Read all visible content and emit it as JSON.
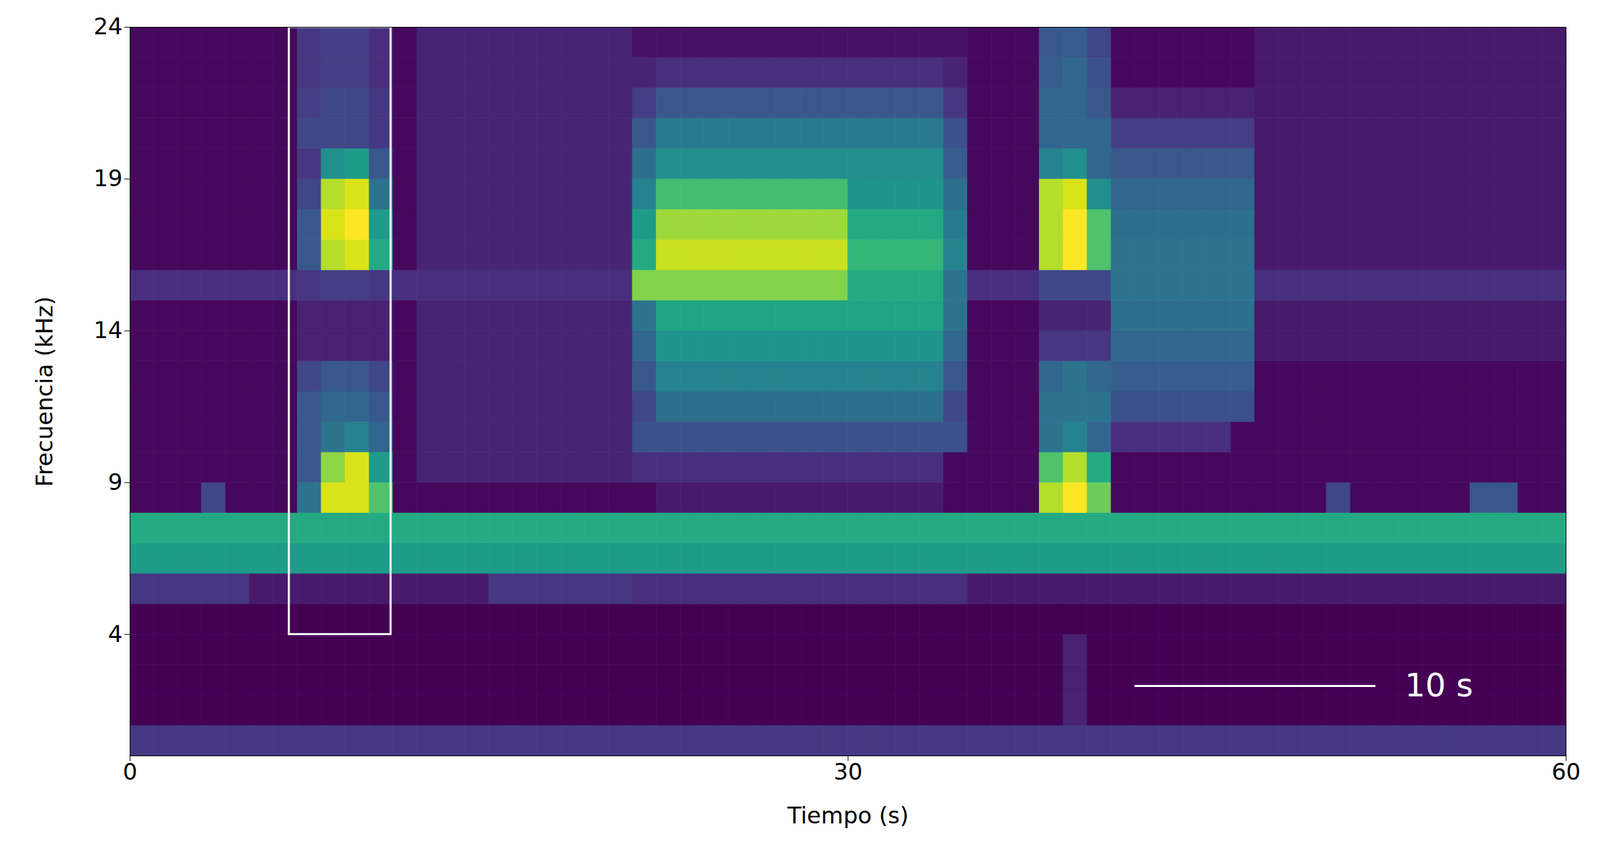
{
  "chart_data": {
    "type": "heatmap",
    "x_label": "Tiempo (s)",
    "y_label": "Frecuencia (kHz)",
    "xlim": [
      0,
      60
    ],
    "ylim": [
      0,
      24
    ],
    "xticks": [
      0,
      30,
      60
    ],
    "yticks": [
      4,
      9,
      14,
      19,
      24
    ],
    "x_bins": [
      0,
      1,
      2,
      3,
      4,
      5,
      6,
      7,
      8,
      9,
      10,
      11,
      12,
      13,
      14,
      15,
      16,
      17,
      18,
      19,
      20,
      21,
      22,
      23,
      24,
      25,
      26,
      27,
      28,
      29,
      30,
      31,
      32,
      33,
      34,
      35,
      36,
      37,
      38,
      39,
      40,
      41,
      42,
      43,
      44,
      45,
      46,
      47,
      48,
      49,
      50,
      51,
      52,
      53,
      54,
      55,
      56,
      57,
      58,
      59,
      60
    ],
    "y_bins": [
      0,
      1,
      2,
      3,
      4,
      5,
      6,
      7,
      8,
      9,
      10,
      11,
      12,
      13,
      14,
      15,
      16,
      17,
      18,
      19,
      20,
      21,
      22,
      23,
      24
    ],
    "z": [
      [
        20,
        20,
        20,
        20,
        20,
        20,
        20,
        20,
        20,
        20,
        20,
        20,
        20,
        20,
        20,
        20,
        20,
        20,
        20,
        20,
        20,
        20,
        20,
        20,
        20,
        20,
        20,
        20,
        20,
        20,
        20,
        20,
        20,
        20,
        20,
        20,
        20,
        20,
        20,
        20,
        20,
        20,
        20,
        20,
        20,
        20,
        20,
        20,
        20,
        20,
        20,
        20,
        20,
        20,
        20,
        20,
        20,
        20,
        20,
        20
      ],
      [
        6,
        6,
        6,
        6,
        6,
        6,
        6,
        6,
        6,
        6,
        6,
        6,
        6,
        6,
        6,
        6,
        6,
        6,
        6,
        6,
        6,
        6,
        6,
        6,
        6,
        6,
        6,
        6,
        6,
        6,
        6,
        6,
        6,
        6,
        6,
        6,
        6,
        6,
        6,
        14,
        6,
        6,
        6,
        6,
        6,
        6,
        6,
        6,
        6,
        6,
        6,
        6,
        6,
        6,
        6,
        6,
        6,
        6,
        6,
        6
      ],
      [
        6,
        6,
        6,
        6,
        6,
        6,
        6,
        6,
        6,
        6,
        6,
        6,
        6,
        6,
        6,
        6,
        6,
        6,
        6,
        6,
        6,
        6,
        6,
        6,
        6,
        6,
        6,
        6,
        6,
        6,
        6,
        6,
        6,
        6,
        6,
        6,
        6,
        6,
        6,
        14,
        6,
        6,
        6,
        6,
        6,
        6,
        6,
        6,
        6,
        6,
        6,
        6,
        6,
        6,
        6,
        6,
        6,
        6,
        6,
        6
      ],
      [
        6,
        6,
        6,
        6,
        6,
        6,
        6,
        6,
        6,
        6,
        6,
        6,
        6,
        6,
        6,
        6,
        6,
        6,
        6,
        6,
        6,
        6,
        6,
        6,
        6,
        6,
        6,
        6,
        6,
        6,
        6,
        6,
        6,
        6,
        6,
        6,
        6,
        6,
        6,
        14,
        6,
        6,
        6,
        6,
        6,
        6,
        6,
        6,
        6,
        6,
        6,
        6,
        6,
        6,
        6,
        6,
        6,
        6,
        6,
        6
      ],
      [
        6,
        6,
        6,
        6,
        6,
        6,
        6,
        6,
        6,
        6,
        6,
        6,
        6,
        6,
        6,
        6,
        6,
        6,
        6,
        6,
        6,
        6,
        6,
        6,
        6,
        6,
        6,
        6,
        6,
        6,
        6,
        6,
        6,
        6,
        6,
        6,
        6,
        6,
        6,
        6,
        6,
        6,
        6,
        6,
        6,
        6,
        6,
        6,
        6,
        6,
        6,
        6,
        6,
        6,
        6,
        6,
        6,
        6,
        6,
        6
      ],
      [
        20,
        20,
        20,
        20,
        20,
        12,
        12,
        12,
        12,
        12,
        12,
        12,
        12,
        12,
        12,
        20,
        20,
        20,
        20,
        20,
        20,
        18,
        18,
        18,
        18,
        18,
        18,
        18,
        18,
        18,
        18,
        18,
        18,
        18,
        18,
        12,
        12,
        12,
        12,
        12,
        12,
        12,
        12,
        12,
        12,
        12,
        12,
        12,
        12,
        12,
        12,
        12,
        12,
        12,
        12,
        12,
        12,
        12,
        12,
        12
      ],
      [
        55,
        55,
        55,
        55,
        55,
        55,
        55,
        55,
        55,
        55,
        55,
        55,
        55,
        55,
        55,
        55,
        55,
        55,
        55,
        55,
        55,
        55,
        55,
        55,
        55,
        55,
        55,
        55,
        55,
        55,
        55,
        55,
        55,
        55,
        55,
        55,
        55,
        55,
        55,
        55,
        55,
        55,
        55,
        55,
        55,
        55,
        55,
        55,
        55,
        55,
        55,
        55,
        55,
        55,
        55,
        55,
        55,
        55,
        55,
        55
      ],
      [
        60,
        60,
        60,
        60,
        60,
        60,
        60,
        60,
        60,
        60,
        60,
        60,
        60,
        60,
        60,
        60,
        60,
        60,
        60,
        60,
        60,
        60,
        60,
        60,
        60,
        60,
        60,
        60,
        60,
        60,
        60,
        60,
        60,
        60,
        60,
        60,
        60,
        60,
        60,
        60,
        60,
        60,
        60,
        60,
        60,
        60,
        60,
        60,
        60,
        60,
        60,
        60,
        60,
        60,
        60,
        60,
        60,
        60,
        60,
        60
      ],
      [
        8,
        8,
        8,
        25,
        8,
        8,
        8,
        40,
        90,
        90,
        70,
        8,
        8,
        8,
        8,
        8,
        8,
        8,
        8,
        8,
        8,
        8,
        12,
        12,
        12,
        12,
        12,
        12,
        12,
        12,
        12,
        12,
        12,
        12,
        8,
        8,
        8,
        8,
        85,
        95,
        75,
        8,
        8,
        8,
        8,
        8,
        8,
        8,
        8,
        8,
        25,
        8,
        8,
        8,
        8,
        8,
        30,
        30,
        8,
        8
      ],
      [
        8,
        8,
        8,
        8,
        8,
        8,
        8,
        30,
        80,
        90,
        55,
        8,
        15,
        15,
        15,
        15,
        15,
        15,
        15,
        15,
        15,
        18,
        18,
        18,
        18,
        18,
        18,
        18,
        18,
        18,
        18,
        18,
        18,
        18,
        8,
        8,
        8,
        8,
        70,
        85,
        60,
        8,
        8,
        8,
        8,
        8,
        8,
        8,
        8,
        8,
        8,
        8,
        8,
        8,
        8,
        8,
        8,
        8,
        8,
        8
      ],
      [
        8,
        8,
        8,
        8,
        8,
        8,
        8,
        30,
        40,
        45,
        35,
        8,
        15,
        15,
        15,
        15,
        15,
        15,
        15,
        15,
        15,
        28,
        28,
        28,
        28,
        28,
        28,
        28,
        28,
        28,
        28,
        28,
        28,
        28,
        28,
        8,
        8,
        8,
        40,
        45,
        35,
        18,
        18,
        18,
        18,
        18,
        8,
        8,
        8,
        8,
        8,
        8,
        8,
        8,
        8,
        8,
        8,
        8,
        8,
        8
      ],
      [
        8,
        8,
        8,
        8,
        8,
        8,
        8,
        30,
        35,
        35,
        30,
        8,
        15,
        15,
        15,
        15,
        15,
        15,
        15,
        15,
        15,
        25,
        38,
        38,
        38,
        38,
        38,
        38,
        38,
        38,
        38,
        38,
        38,
        38,
        25,
        8,
        8,
        8,
        40,
        40,
        40,
        28,
        28,
        28,
        28,
        28,
        28,
        8,
        8,
        8,
        8,
        8,
        8,
        8,
        8,
        8,
        8,
        8,
        8,
        8
      ],
      [
        8,
        8,
        8,
        8,
        8,
        8,
        8,
        25,
        30,
        30,
        25,
        8,
        15,
        15,
        15,
        15,
        15,
        15,
        15,
        15,
        15,
        30,
        45,
        45,
        45,
        45,
        45,
        45,
        45,
        45,
        45,
        45,
        45,
        45,
        30,
        8,
        8,
        8,
        35,
        40,
        35,
        32,
        32,
        32,
        32,
        32,
        32,
        8,
        8,
        8,
        8,
        8,
        8,
        8,
        8,
        8,
        8,
        8,
        8,
        8
      ],
      [
        8,
        8,
        8,
        8,
        8,
        8,
        8,
        14,
        14,
        14,
        14,
        8,
        15,
        15,
        15,
        15,
        15,
        15,
        15,
        15,
        15,
        35,
        52,
        52,
        52,
        52,
        52,
        52,
        52,
        52,
        52,
        52,
        52,
        52,
        35,
        8,
        8,
        8,
        20,
        20,
        20,
        35,
        35,
        35,
        35,
        35,
        35,
        12,
        12,
        12,
        12,
        12,
        12,
        12,
        12,
        12,
        12,
        12,
        12,
        12
      ],
      [
        8,
        8,
        8,
        8,
        8,
        8,
        8,
        14,
        14,
        14,
        14,
        8,
        15,
        15,
        15,
        15,
        15,
        15,
        15,
        15,
        15,
        40,
        58,
        58,
        58,
        58,
        58,
        58,
        58,
        58,
        58,
        58,
        58,
        58,
        40,
        8,
        8,
        8,
        15,
        15,
        15,
        38,
        38,
        38,
        38,
        38,
        38,
        12,
        12,
        12,
        12,
        12,
        12,
        12,
        12,
        12,
        12,
        12,
        12,
        12
      ],
      [
        18,
        18,
        18,
        18,
        18,
        18,
        18,
        20,
        22,
        22,
        20,
        18,
        18,
        18,
        18,
        18,
        18,
        18,
        18,
        18,
        18,
        78,
        78,
        78,
        78,
        78,
        78,
        78,
        78,
        78,
        60,
        60,
        60,
        60,
        40,
        18,
        18,
        18,
        25,
        25,
        25,
        40,
        40,
        40,
        40,
        40,
        40,
        18,
        18,
        18,
        18,
        18,
        18,
        18,
        18,
        18,
        18,
        18,
        18,
        18
      ],
      [
        8,
        8,
        8,
        8,
        8,
        8,
        8,
        30,
        85,
        90,
        60,
        8,
        15,
        15,
        15,
        15,
        15,
        15,
        15,
        15,
        15,
        60,
        88,
        88,
        88,
        88,
        88,
        88,
        88,
        88,
        65,
        65,
        65,
        65,
        45,
        8,
        8,
        8,
        85,
        95,
        70,
        40,
        40,
        40,
        40,
        40,
        40,
        12,
        12,
        12,
        12,
        12,
        12,
        12,
        12,
        12,
        12,
        12,
        12,
        12
      ],
      [
        8,
        8,
        8,
        8,
        8,
        8,
        8,
        30,
        90,
        95,
        55,
        8,
        15,
        15,
        15,
        15,
        15,
        15,
        15,
        15,
        15,
        55,
        82,
        82,
        82,
        82,
        82,
        82,
        82,
        82,
        60,
        60,
        60,
        60,
        42,
        8,
        8,
        8,
        85,
        95,
        70,
        38,
        38,
        38,
        38,
        38,
        38,
        12,
        12,
        12,
        12,
        12,
        12,
        12,
        12,
        12,
        12,
        12,
        12,
        12
      ],
      [
        8,
        8,
        8,
        8,
        8,
        8,
        8,
        25,
        85,
        90,
        40,
        8,
        15,
        15,
        15,
        15,
        15,
        15,
        15,
        15,
        15,
        45,
        68,
        68,
        68,
        68,
        68,
        68,
        68,
        68,
        52,
        52,
        52,
        52,
        38,
        8,
        8,
        8,
        85,
        90,
        50,
        35,
        35,
        35,
        35,
        35,
        35,
        12,
        12,
        12,
        12,
        12,
        12,
        12,
        12,
        12,
        12,
        12,
        12,
        12
      ],
      [
        8,
        8,
        8,
        8,
        8,
        8,
        8,
        20,
        50,
        55,
        30,
        8,
        15,
        15,
        15,
        15,
        15,
        15,
        15,
        15,
        15,
        38,
        50,
        50,
        50,
        50,
        50,
        50,
        50,
        50,
        50,
        50,
        50,
        50,
        32,
        8,
        8,
        8,
        45,
        50,
        35,
        30,
        30,
        30,
        30,
        30,
        30,
        12,
        12,
        12,
        12,
        12,
        12,
        12,
        12,
        12,
        12,
        12,
        12,
        12
      ],
      [
        8,
        8,
        8,
        8,
        8,
        8,
        8,
        25,
        25,
        25,
        20,
        8,
        15,
        15,
        15,
        15,
        15,
        15,
        15,
        15,
        15,
        30,
        42,
        42,
        42,
        42,
        42,
        42,
        42,
        42,
        42,
        42,
        42,
        42,
        28,
        8,
        8,
        8,
        35,
        35,
        35,
        22,
        22,
        22,
        22,
        22,
        22,
        12,
        12,
        12,
        12,
        12,
        12,
        12,
        12,
        12,
        12,
        12,
        12,
        12
      ],
      [
        8,
        8,
        8,
        8,
        8,
        8,
        8,
        22,
        25,
        25,
        20,
        8,
        15,
        15,
        15,
        15,
        15,
        15,
        15,
        15,
        15,
        22,
        30,
        30,
        30,
        30,
        30,
        30,
        30,
        30,
        30,
        30,
        30,
        30,
        20,
        8,
        8,
        8,
        35,
        35,
        30,
        14,
        14,
        14,
        14,
        14,
        14,
        12,
        12,
        12,
        12,
        12,
        12,
        12,
        12,
        12,
        12,
        12,
        12,
        12
      ],
      [
        8,
        8,
        8,
        8,
        8,
        8,
        8,
        20,
        22,
        22,
        18,
        8,
        15,
        15,
        15,
        15,
        15,
        15,
        15,
        15,
        15,
        15,
        18,
        18,
        18,
        18,
        18,
        18,
        18,
        18,
        18,
        18,
        18,
        18,
        15,
        8,
        8,
        8,
        32,
        35,
        28,
        8,
        8,
        8,
        8,
        8,
        8,
        12,
        12,
        12,
        12,
        12,
        12,
        12,
        12,
        12,
        12,
        12,
        12,
        12
      ],
      [
        8,
        8,
        8,
        8,
        8,
        8,
        8,
        20,
        22,
        22,
        18,
        8,
        15,
        15,
        15,
        15,
        15,
        15,
        15,
        15,
        15,
        10,
        10,
        10,
        10,
        10,
        10,
        10,
        10,
        10,
        10,
        10,
        10,
        10,
        10,
        8,
        8,
        8,
        30,
        32,
        25,
        8,
        8,
        8,
        8,
        8,
        8,
        12,
        12,
        12,
        12,
        12,
        12,
        12,
        12,
        12,
        12,
        12,
        12,
        12
      ]
    ],
    "box": {
      "x": [
        6.65,
        10.9
      ],
      "y": [
        4,
        24
      ]
    },
    "scale_bar": {
      "x": [
        42,
        52
      ],
      "y": 2.3,
      "label": "10 s"
    }
  }
}
